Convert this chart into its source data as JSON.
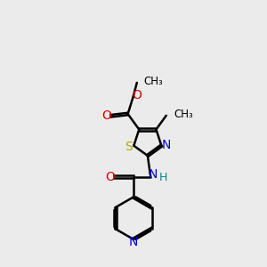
{
  "bg_color": "#ebebeb",
  "bond_color": "#000000",
  "S_color": "#aaaa00",
  "N_color": "#0000dd",
  "O_color": "#dd0000",
  "H_color": "#008888",
  "line_width": 1.8,
  "dbo": 0.055,
  "xlim": [
    0,
    10
  ],
  "ylim": [
    0,
    13
  ]
}
